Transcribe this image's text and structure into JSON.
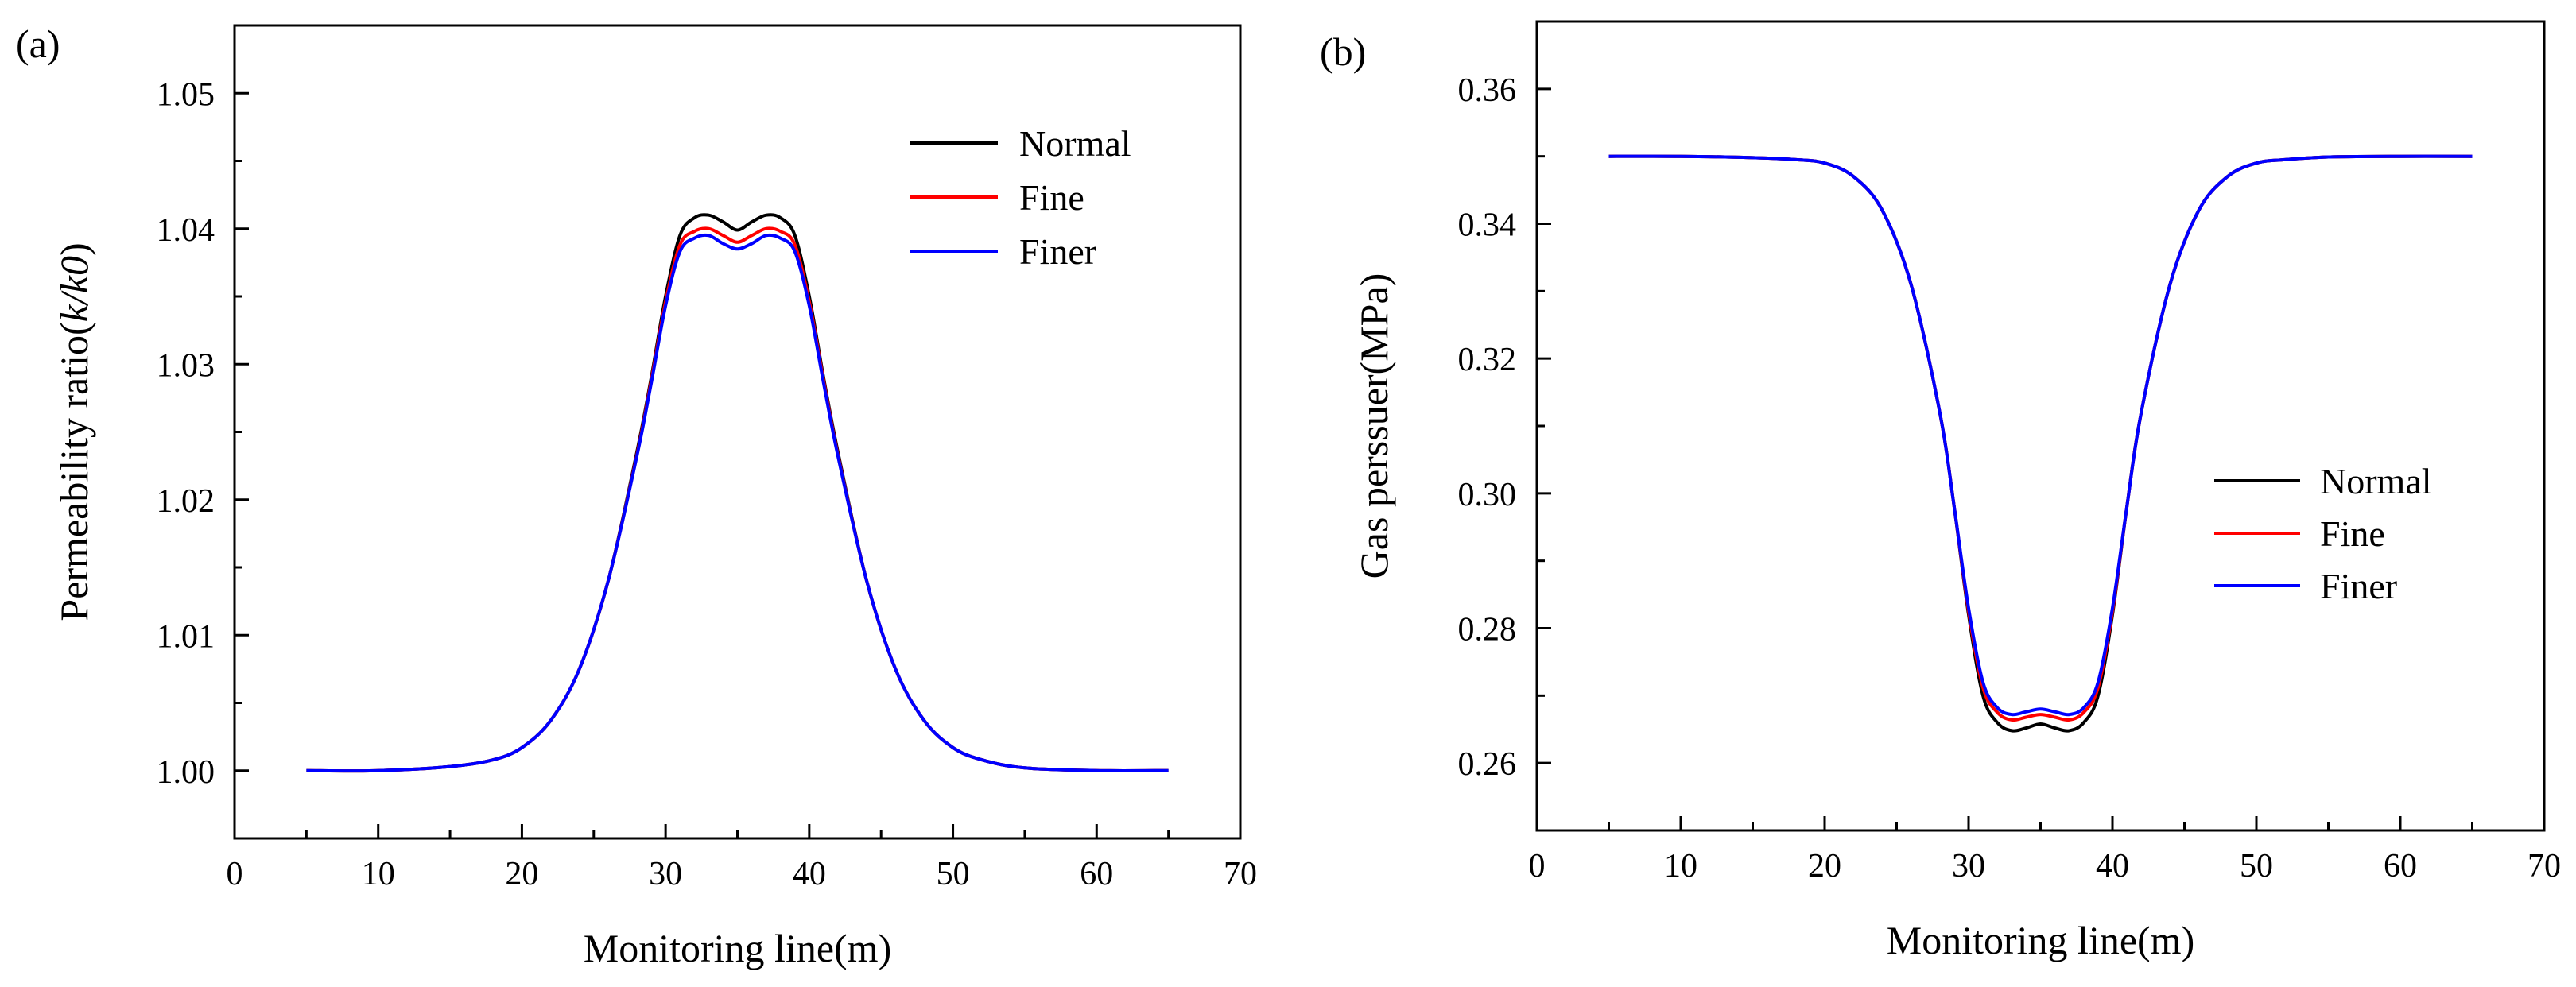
{
  "chart_data": [
    {
      "type": "line",
      "panel_label": "(a)",
      "title": "",
      "xlabel": "Monitoring line(m)",
      "ylabel_prefix": "Permeability ratio(",
      "ylabel_italic": "k/k0",
      "ylabel_suffix": ")",
      "xlim": [
        0,
        70
      ],
      "ylim": [
        0.995,
        1.055
      ],
      "xticks": [
        0,
        10,
        20,
        30,
        40,
        50,
        60,
        70
      ],
      "xtick_labels": [
        "0",
        "10",
        "20",
        "30",
        "40",
        "50",
        "60",
        "70"
      ],
      "yticks": [
        1.0,
        1.01,
        1.02,
        1.03,
        1.04,
        1.05
      ],
      "ytick_labels": [
        "1.00",
        "1.01",
        "1.02",
        "1.03",
        "1.04",
        "1.05"
      ],
      "grid": false,
      "legend_position": "top-right",
      "x": [
        5,
        10,
        15,
        18,
        20,
        22,
        24,
        26,
        28,
        29,
        30,
        31,
        32,
        33,
        34,
        35,
        36,
        37,
        38,
        39,
        40,
        41,
        42,
        44,
        46,
        48,
        50,
        52,
        55,
        60,
        65
      ],
      "series": [
        {
          "name": "Normal",
          "color": "#000000",
          "values": [
            1.0,
            1.0,
            1.0003,
            1.0008,
            1.0017,
            1.0037,
            1.0075,
            1.014,
            1.0235,
            1.029,
            1.035,
            1.0395,
            1.0408,
            1.041,
            1.0405,
            1.0399,
            1.0405,
            1.041,
            1.0408,
            1.0395,
            1.035,
            1.029,
            1.0235,
            1.014,
            1.0075,
            1.0037,
            1.0017,
            1.0008,
            1.0002,
            1.0,
            1.0
          ]
        },
        {
          "name": "Fine",
          "color": "#ff0000",
          "values": [
            1.0,
            1.0,
            1.0003,
            1.0008,
            1.0017,
            1.0037,
            1.0075,
            1.014,
            1.0233,
            1.0288,
            1.0346,
            1.0388,
            1.0398,
            1.04,
            1.0395,
            1.039,
            1.0395,
            1.04,
            1.0398,
            1.0388,
            1.0346,
            1.0288,
            1.0233,
            1.014,
            1.0075,
            1.0037,
            1.0017,
            1.0008,
            1.0002,
            1.0,
            1.0
          ]
        },
        {
          "name": "Finer",
          "color": "#0000ff",
          "values": [
            1.0,
            1.0,
            1.0003,
            1.0008,
            1.0017,
            1.0037,
            1.0075,
            1.014,
            1.0232,
            1.0286,
            1.0343,
            1.0383,
            1.0393,
            1.0395,
            1.0389,
            1.0385,
            1.0389,
            1.0395,
            1.0393,
            1.0383,
            1.0343,
            1.0286,
            1.0232,
            1.014,
            1.0075,
            1.0037,
            1.0017,
            1.0008,
            1.0002,
            1.0,
            1.0
          ]
        }
      ]
    },
    {
      "type": "line",
      "panel_label": "(b)",
      "title": "",
      "xlabel": "Monitoring line(m)",
      "ylabel": "Gas perssuer(MPa)",
      "xlim": [
        0,
        70
      ],
      "ylim": [
        0.25,
        0.37
      ],
      "xticks": [
        0,
        10,
        20,
        30,
        40,
        50,
        60,
        70
      ],
      "xtick_labels": [
        "0",
        "10",
        "20",
        "30",
        "40",
        "50",
        "60",
        "70"
      ],
      "yticks": [
        0.26,
        0.28,
        0.3,
        0.32,
        0.34,
        0.36
      ],
      "ytick_labels": [
        "0.26",
        "0.28",
        "0.30",
        "0.32",
        "0.34",
        "0.36"
      ],
      "grid": false,
      "legend_position": "center-right",
      "x": [
        5,
        10,
        15,
        18,
        20,
        22,
        24,
        26,
        28,
        29,
        30,
        31,
        32,
        33,
        34,
        35,
        36,
        37,
        38,
        39,
        40,
        41,
        42,
        44,
        46,
        48,
        50,
        52,
        55,
        60,
        65
      ],
      "series": [
        {
          "name": "Normal",
          "color": "#000000",
          "values": [
            0.35,
            0.35,
            0.3498,
            0.3495,
            0.349,
            0.347,
            0.342,
            0.331,
            0.312,
            0.298,
            0.282,
            0.27,
            0.266,
            0.2648,
            0.2652,
            0.2658,
            0.2652,
            0.2648,
            0.266,
            0.27,
            0.282,
            0.298,
            0.312,
            0.331,
            0.342,
            0.347,
            0.349,
            0.3495,
            0.3499,
            0.35,
            0.35
          ]
        },
        {
          "name": "Fine",
          "color": "#ff0000",
          "values": [
            0.35,
            0.35,
            0.3498,
            0.3495,
            0.349,
            0.347,
            0.342,
            0.331,
            0.312,
            0.298,
            0.2825,
            0.2712,
            0.2675,
            0.2664,
            0.2668,
            0.2672,
            0.2668,
            0.2664,
            0.2675,
            0.2712,
            0.2825,
            0.298,
            0.312,
            0.331,
            0.342,
            0.347,
            0.349,
            0.3495,
            0.3499,
            0.35,
            0.35
          ]
        },
        {
          "name": "Finer",
          "color": "#0000ff",
          "values": [
            0.35,
            0.35,
            0.3498,
            0.3495,
            0.349,
            0.347,
            0.342,
            0.331,
            0.312,
            0.298,
            0.283,
            0.272,
            0.2682,
            0.2672,
            0.2676,
            0.268,
            0.2676,
            0.2672,
            0.2682,
            0.272,
            0.283,
            0.298,
            0.312,
            0.331,
            0.342,
            0.347,
            0.349,
            0.3495,
            0.3499,
            0.35,
            0.35
          ]
        }
      ]
    }
  ]
}
